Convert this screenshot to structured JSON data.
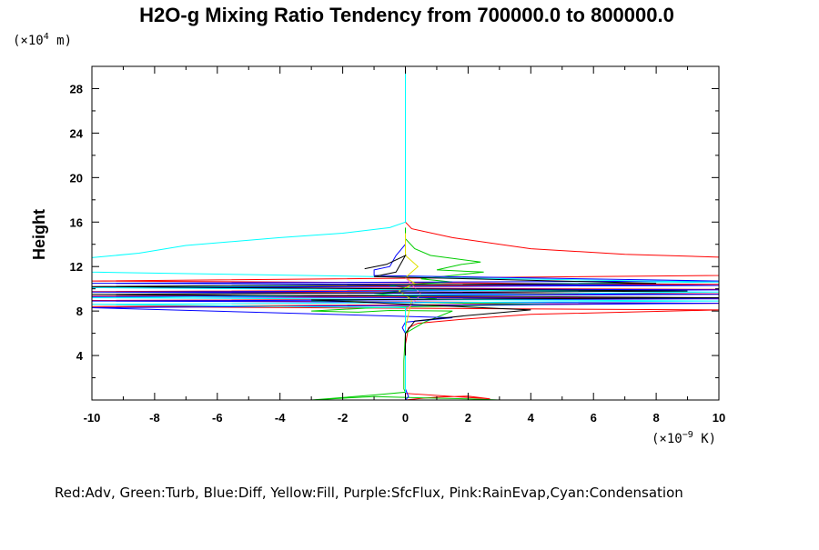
{
  "chart_data": {
    "type": "line",
    "title": "H2O-g Mixing Ratio Tendency from 700000.0 to 800000.0",
    "ylabel": "Height",
    "y_unit": {
      "base": "(×10",
      "exp": "4",
      "rest": " m)"
    },
    "x_unit": {
      "base": "(×10",
      "exp": "−9",
      "rest": " K)"
    },
    "xlim": [
      -10,
      10
    ],
    "ylim": [
      0,
      30
    ],
    "x_ticks": [
      "-10",
      "-8",
      "-6",
      "-4",
      "-2",
      "0",
      "2",
      "4",
      "6",
      "8",
      "10"
    ],
    "y_ticks": [
      "4",
      "8",
      "12",
      "16",
      "20",
      "24",
      "28"
    ],
    "grid": false,
    "legend_text": "Red:Adv, Green:Turb, Blue:Diff, Yellow:Fill, Purple:SfcFlux, Pink:RainEvap,Cyan:Condensation",
    "series": [
      {
        "name": "Adv",
        "color": "#ff0000",
        "points": [
          [
            0,
            0
          ],
          [
            0.5,
            0.15
          ],
          [
            1.0,
            0.25
          ],
          [
            2.0,
            0.35
          ],
          [
            2.7,
            0.1
          ],
          [
            0,
            0.6
          ],
          [
            0,
            2.0
          ],
          [
            0,
            5.0
          ],
          [
            0.1,
            6.5
          ],
          [
            0.4,
            6.9
          ],
          [
            2.0,
            7.3
          ],
          [
            4.0,
            7.7
          ],
          [
            10,
            8.1
          ],
          [
            -10,
            8.4
          ],
          [
            10,
            8.7
          ],
          [
            -10,
            8.95
          ],
          [
            10,
            9.15
          ],
          [
            -10,
            9.35
          ],
          [
            10,
            9.55
          ],
          [
            -10,
            9.75
          ],
          [
            10,
            9.95
          ],
          [
            -10,
            10.15
          ],
          [
            10,
            10.4
          ],
          [
            -10,
            10.7
          ],
          [
            10,
            11.2
          ],
          [
            10.5,
            12.8
          ],
          [
            7.0,
            13.1
          ],
          [
            4.0,
            13.6
          ],
          [
            1.5,
            14.6
          ],
          [
            0.2,
            15.4
          ],
          [
            0,
            16
          ]
        ]
      },
      {
        "name": "Turb",
        "color": "#00cc00",
        "points": [
          [
            3.0,
            0
          ],
          [
            2.0,
            0.1
          ],
          [
            0.5,
            0.2
          ],
          [
            -1.0,
            0.3
          ],
          [
            -1.8,
            0.2
          ],
          [
            -3.0,
            0
          ],
          [
            -1.0,
            0.45
          ],
          [
            0,
            0.7
          ],
          [
            -0.05,
            1.0
          ],
          [
            -0.05,
            3.5
          ],
          [
            0,
            6.0
          ],
          [
            0.6,
            7.0
          ],
          [
            1.5,
            8.0
          ],
          [
            -0.5,
            8.05
          ],
          [
            -1.5,
            7.9
          ],
          [
            -3.0,
            8.0
          ],
          [
            -1.0,
            8.3
          ],
          [
            0.5,
            8.4
          ],
          [
            4.5,
            8.6
          ],
          [
            -3.0,
            8.9
          ],
          [
            1.0,
            9.1
          ],
          [
            -1.0,
            9.6
          ],
          [
            0.5,
            9.9
          ],
          [
            -0.5,
            10.3
          ],
          [
            1.5,
            10.6
          ],
          [
            0.5,
            10.9
          ],
          [
            2.5,
            11.5
          ],
          [
            1.0,
            11.7
          ],
          [
            1.8,
            12.2
          ],
          [
            2.4,
            12.4
          ],
          [
            0.8,
            13.0
          ],
          [
            0.3,
            13.6
          ],
          [
            0,
            14.5
          ],
          [
            0,
            15.5
          ]
        ]
      },
      {
        "name": "Diff",
        "color": "#0000ff",
        "points": [
          [
            0,
            0
          ],
          [
            0.1,
            0.3
          ],
          [
            0,
            1.0
          ],
          [
            0,
            2.5
          ],
          [
            0,
            6.0
          ],
          [
            -0.1,
            6.5
          ],
          [
            0,
            7.0
          ],
          [
            1.5,
            7.4
          ],
          [
            -10,
            8.3
          ],
          [
            10,
            8.7
          ],
          [
            -10,
            8.9
          ],
          [
            10,
            9.1
          ],
          [
            -10,
            9.3
          ],
          [
            10,
            9.5
          ],
          [
            -10,
            9.7
          ],
          [
            10,
            9.9
          ],
          [
            -10,
            10.1
          ],
          [
            10,
            10.3
          ],
          [
            -10,
            10.5
          ],
          [
            10,
            10.7
          ],
          [
            -1.0,
            11.2
          ],
          [
            -1.0,
            11.7
          ],
          [
            -0.5,
            12.0
          ],
          [
            -0.3,
            13.0
          ],
          [
            0,
            14.0
          ]
        ]
      },
      {
        "name": "Fill",
        "color": "#e0e000",
        "points": [
          [
            0,
            0
          ],
          [
            0,
            6.5
          ],
          [
            0.2,
            9.0
          ],
          [
            -0.2,
            9.8
          ],
          [
            0.3,
            10.5
          ],
          [
            0,
            11.0
          ],
          [
            0.4,
            12.0
          ],
          [
            0,
            13.0
          ],
          [
            0,
            15
          ]
        ]
      },
      {
        "name": "SfcFlux",
        "color": "#9900cc",
        "points": [
          [
            -5.0,
            0
          ],
          [
            -3.0,
            0
          ],
          [
            0,
            0
          ]
        ]
      },
      {
        "name": "RainEvap",
        "color": "#ff66cc",
        "points": [
          [
            -5.5,
            0
          ],
          [
            -3.5,
            0
          ],
          [
            0,
            0
          ],
          [
            0,
            8.0
          ],
          [
            0.5,
            9.5
          ],
          [
            0,
            11.0
          ]
        ]
      },
      {
        "name": "Condensation",
        "color": "#00ffff",
        "points": [
          [
            0,
            30
          ],
          [
            0,
            16
          ],
          [
            -0.5,
            15.5
          ],
          [
            -2.0,
            15.0
          ],
          [
            -4.0,
            14.6
          ],
          [
            -7.0,
            13.9
          ],
          [
            -8.5,
            13.2
          ],
          [
            -10,
            12.8
          ],
          [
            -10,
            11.5
          ],
          [
            10,
            10.6
          ],
          [
            -10,
            10.1
          ],
          [
            10,
            9.7
          ],
          [
            -10,
            9.2
          ],
          [
            10,
            8.9
          ],
          [
            -10,
            8.6
          ],
          [
            0,
            8.3
          ],
          [
            0,
            0
          ]
        ]
      },
      {
        "name": "",
        "color": "#000000",
        "points": [
          [
            -1.3,
            11.8
          ],
          [
            -0.6,
            12.2
          ],
          [
            0,
            13.0
          ],
          [
            -0.3,
            11.5
          ],
          [
            -1.0,
            11.1
          ],
          [
            8.0,
            10.5
          ],
          [
            -10,
            10.2
          ],
          [
            9.0,
            9.8
          ],
          [
            -10,
            9.5
          ],
          [
            10,
            9.2
          ],
          [
            -3.0,
            9.0
          ],
          [
            4.0,
            8.1
          ],
          [
            2.0,
            7.6
          ],
          [
            0.3,
            7.1
          ],
          [
            0,
            6.0
          ],
          [
            0,
            4.0
          ]
        ]
      }
    ]
  }
}
